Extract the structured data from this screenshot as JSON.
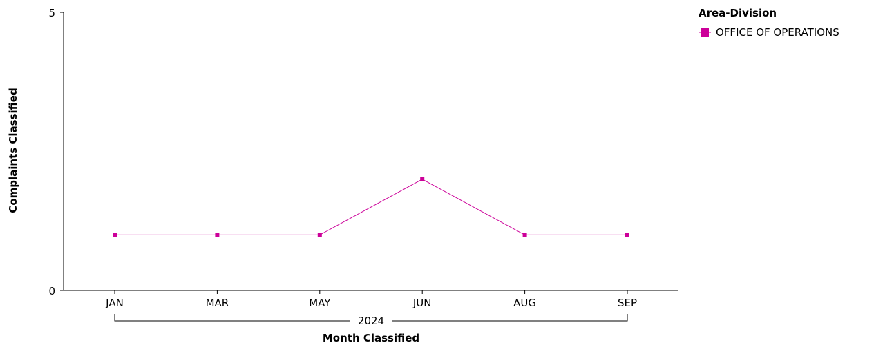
{
  "chart_data": {
    "type": "line",
    "title": "",
    "xlabel": "Month Classified",
    "ylabel": "Complaints Classified",
    "group_label": "2024",
    "categories": [
      "JAN",
      "MAR",
      "MAY",
      "JUN",
      "AUG",
      "SEP"
    ],
    "series": [
      {
        "name": "OFFICE OF OPERATIONS",
        "values": [
          1,
          1,
          1,
          2,
          1,
          1
        ],
        "color": "#cc0099"
      }
    ],
    "ylim": [
      0,
      5
    ],
    "yticks": [
      0,
      5
    ],
    "grid": false,
    "legend": {
      "title": "Area-Division",
      "placement": "top-right"
    }
  }
}
